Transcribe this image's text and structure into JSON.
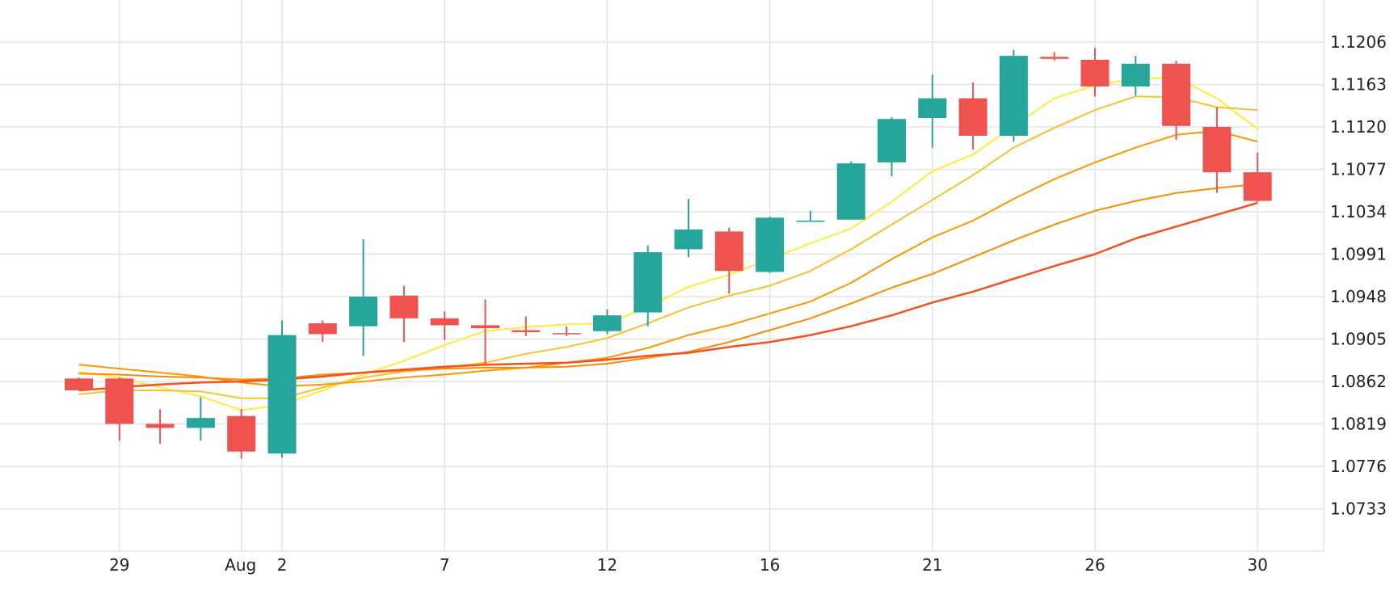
{
  "chart_data": {
    "type": "candlestick",
    "title": "",
    "xlabel": "",
    "ylabel": "",
    "ylim": [
      1.069,
      1.1235
    ],
    "grid": true,
    "y_axis_position": "right",
    "y_ticks": [
      "1.1206",
      "1.1163",
      "1.1120",
      "1.1077",
      "1.1034",
      "1.0991",
      "1.0948",
      "1.0905",
      "1.0862",
      "1.0819",
      "1.0776",
      "1.0733"
    ],
    "x_ticks": [
      {
        "label": "29",
        "index": 1
      },
      {
        "label": "Aug",
        "index": 4
      },
      {
        "label": "2",
        "index": 5
      },
      {
        "label": "7",
        "index": 9
      },
      {
        "label": "12",
        "index": 13
      },
      {
        "label": "16",
        "index": 17
      },
      {
        "label": "21",
        "index": 21
      },
      {
        "label": "26",
        "index": 25
      },
      {
        "label": "30",
        "index": 29
      }
    ],
    "colors": {
      "up": "#26a69a",
      "down": "#ef5350",
      "ma_yellow": "#ffeb3b",
      "ma_gold": "#fbc02d",
      "ma_orange": "#ff9800",
      "ma_dark_orange": "#fb8c00",
      "ma_red": "#f4511e"
    },
    "candles": [
      {
        "open": 1.0865,
        "high": 1.0866,
        "low": 1.0853,
        "close": 1.0853
      },
      {
        "open": 1.0865,
        "high": 1.0866,
        "low": 1.0802,
        "close": 1.0819
      },
      {
        "open": 1.0819,
        "high": 1.0834,
        "low": 1.0799,
        "close": 1.0815
      },
      {
        "open": 1.0815,
        "high": 1.0846,
        "low": 1.0802,
        "close": 1.0825
      },
      {
        "open": 1.0827,
        "high": 1.0834,
        "low": 1.0784,
        "close": 1.0791
      },
      {
        "open": 1.0789,
        "high": 1.0924,
        "low": 1.0785,
        "close": 1.0909
      },
      {
        "open": 1.0921,
        "high": 1.0924,
        "low": 1.0902,
        "close": 1.091
      },
      {
        "open": 1.0918,
        "high": 1.1006,
        "low": 1.0888,
        "close": 1.0948
      },
      {
        "open": 1.0949,
        "high": 1.0959,
        "low": 1.0902,
        "close": 1.0926
      },
      {
        "open": 1.0926,
        "high": 1.0933,
        "low": 1.0904,
        "close": 1.0919
      },
      {
        "open": 1.0919,
        "high": 1.0945,
        "low": 1.088,
        "close": 1.0916
      },
      {
        "open": 1.0914,
        "high": 1.0928,
        "low": 1.0908,
        "close": 1.0912
      },
      {
        "open": 1.0911,
        "high": 1.0918,
        "low": 1.0908,
        "close": 1.091
      },
      {
        "open": 1.0913,
        "high": 1.0935,
        "low": 1.091,
        "close": 1.0929
      },
      {
        "open": 1.0932,
        "high": 1.1,
        "low": 1.0918,
        "close": 1.0993
      },
      {
        "open": 1.0996,
        "high": 1.1047,
        "low": 1.0988,
        "close": 1.1016
      },
      {
        "open": 1.1014,
        "high": 1.1018,
        "low": 1.0951,
        "close": 1.0974
      },
      {
        "open": 1.0973,
        "high": 1.1029,
        "low": 1.0972,
        "close": 1.1028
      },
      {
        "open": 1.1025,
        "high": 1.1035,
        "low": 1.1025,
        "close": 1.1025
      },
      {
        "open": 1.1026,
        "high": 1.1085,
        "low": 1.1026,
        "close": 1.1083
      },
      {
        "open": 1.1084,
        "high": 1.113,
        "low": 1.107,
        "close": 1.1128
      },
      {
        "open": 1.1129,
        "high": 1.1173,
        "low": 1.1099,
        "close": 1.1149
      },
      {
        "open": 1.1149,
        "high": 1.1165,
        "low": 1.1097,
        "close": 1.1111
      },
      {
        "open": 1.1111,
        "high": 1.1198,
        "low": 1.1105,
        "close": 1.1192
      },
      {
        "open": 1.1191,
        "high": 1.1196,
        "low": 1.1187,
        "close": 1.1189
      },
      {
        "open": 1.1188,
        "high": 1.12,
        "low": 1.1151,
        "close": 1.1161
      },
      {
        "open": 1.1161,
        "high": 1.1192,
        "low": 1.1152,
        "close": 1.1184
      },
      {
        "open": 1.1184,
        "high": 1.1187,
        "low": 1.1107,
        "close": 1.1121
      },
      {
        "open": 1.112,
        "high": 1.114,
        "low": 1.1053,
        "close": 1.1074
      },
      {
        "open": 1.1074,
        "high": 1.1094,
        "low": 1.1044,
        "close": 1.1045
      }
    ],
    "moving_averages": [
      {
        "color": "#ffeb3b",
        "width": 2,
        "values": [
          1.0872,
          1.0866,
          1.0856,
          1.0847,
          1.0833,
          1.0838,
          1.0853,
          1.0869,
          1.0883,
          1.0899,
          1.0913,
          1.0917,
          1.092,
          1.0921,
          1.0937,
          1.0958,
          1.097,
          1.0986,
          1.1002,
          1.1017,
          1.1044,
          1.1075,
          1.1092,
          1.1121,
          1.1149,
          1.1162,
          1.1169,
          1.117,
          1.1149,
          1.1118
        ]
      },
      {
        "color": "#fbc02d",
        "width": 2,
        "values": [
          1.0849,
          1.0853,
          1.0853,
          1.0852,
          1.0845,
          1.0845,
          1.0856,
          1.0866,
          1.0872,
          1.0876,
          1.0881,
          1.089,
          1.0897,
          1.0906,
          1.0921,
          1.0937,
          1.0949,
          1.0959,
          1.0974,
          1.0996,
          1.1021,
          1.1046,
          1.1071,
          1.1099,
          1.1119,
          1.1137,
          1.1151,
          1.115,
          1.114,
          1.1137
        ]
      },
      {
        "color": "#ff9800",
        "width": 2,
        "values": [
          1.0879,
          1.0875,
          1.0871,
          1.0867,
          1.0861,
          1.0857,
          1.0859,
          1.0862,
          1.0866,
          1.0869,
          1.0873,
          1.0876,
          1.0881,
          1.0886,
          1.0896,
          1.0909,
          1.0919,
          1.0931,
          1.0943,
          1.0962,
          1.0986,
          1.1008,
          1.1025,
          1.1047,
          1.1067,
          1.1084,
          1.1099,
          1.1112,
          1.1116,
          1.1105
        ]
      },
      {
        "color": "#fb8c00",
        "width": 2,
        "values": [
          1.087,
          1.0869,
          1.0867,
          1.0866,
          1.0864,
          1.0865,
          1.0869,
          1.0871,
          1.0873,
          1.0875,
          1.0876,
          1.0876,
          1.0877,
          1.088,
          1.0886,
          1.0892,
          1.0902,
          1.0914,
          1.0926,
          1.0941,
          1.0957,
          1.0971,
          1.0988,
          1.1005,
          1.1021,
          1.1035,
          1.1045,
          1.1053,
          1.1058,
          1.1062
        ]
      },
      {
        "color": "#f4511e",
        "width": 2.5,
        "values": [
          1.0853,
          1.0856,
          1.0859,
          1.0861,
          1.0862,
          1.0864,
          1.0867,
          1.0871,
          1.0874,
          1.0877,
          1.0879,
          1.088,
          1.0881,
          1.0884,
          1.0888,
          1.0891,
          1.0897,
          1.0902,
          1.0909,
          1.0918,
          1.0929,
          1.0942,
          1.0953,
          1.0966,
          1.0979,
          1.0991,
          1.1007,
          1.1019,
          1.1031,
          1.1043
        ]
      }
    ]
  }
}
